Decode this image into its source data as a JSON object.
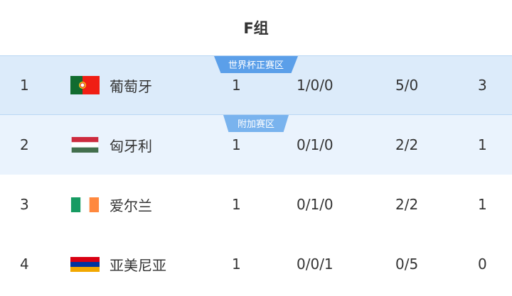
{
  "title": "F组",
  "rows": [
    {
      "rank": "1",
      "team": "葡萄牙",
      "flag": "portugal-flag-icon",
      "played": "1",
      "wdl": "1/0/0",
      "goals": "5/0",
      "points": "3",
      "zone": "世界杯正赛区"
    },
    {
      "rank": "2",
      "team": "匈牙利",
      "flag": "hungary-flag-icon",
      "played": "1",
      "wdl": "0/1/0",
      "goals": "2/2",
      "points": "1",
      "zone": "附加赛区"
    },
    {
      "rank": "3",
      "team": "爱尔兰",
      "flag": "ireland-flag-icon",
      "played": "1",
      "wdl": "0/1/0",
      "goals": "2/2",
      "points": "1"
    },
    {
      "rank": "4",
      "team": "亚美尼亚",
      "flag": "armenia-flag-icon",
      "played": "1",
      "wdl": "0/0/1",
      "goals": "0/5",
      "points": "0"
    }
  ],
  "colors": {
    "qualify_zone": "#dcebfa",
    "playoff_zone": "#eaf3fd",
    "badge_qualify": "#5b9fe9",
    "badge_playoff": "#79b3ee"
  }
}
